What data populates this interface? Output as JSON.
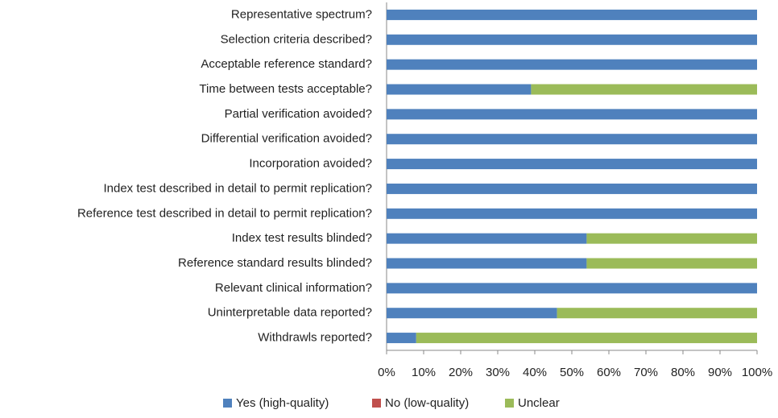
{
  "chart_data": {
    "type": "bar",
    "orientation": "horizontal",
    "stacked": true,
    "categories": [
      "Representative spectrum?",
      "Selection criteria described?",
      "Acceptable reference standard?",
      "Time between tests acceptable?",
      "Partial verification avoided?",
      "Differential verification avoided?",
      "Incorporation avoided?",
      "Index test described in detail to permit replication?",
      "Reference test described in detail to permit replication?",
      "Index test results blinded?",
      "Reference standard results blinded?",
      "Relevant clinical information?",
      "Uninterpretable data reported?",
      "Withdrawls reported?"
    ],
    "series": [
      {
        "name": "Yes (high-quality)",
        "color": "#4f81bd",
        "values": [
          100,
          100,
          100,
          39,
          100,
          100,
          100,
          100,
          100,
          54,
          54,
          100,
          46,
          8
        ]
      },
      {
        "name": "No (low-quality)",
        "color": "#c0504d",
        "values": [
          0,
          0,
          0,
          0,
          0,
          0,
          0,
          0,
          0,
          0,
          0,
          0,
          0,
          0
        ]
      },
      {
        "name": "Unclear",
        "color": "#9bbb59",
        "values": [
          0,
          0,
          0,
          61,
          0,
          0,
          0,
          0,
          0,
          46,
          46,
          0,
          54,
          92
        ]
      }
    ],
    "xlim": [
      0,
      100
    ],
    "xticks": [
      {
        "value": 0,
        "label": "0%"
      },
      {
        "value": 10,
        "label": "10%"
      },
      {
        "value": 20,
        "label": "20%"
      },
      {
        "value": 30,
        "label": "30%"
      },
      {
        "value": 40,
        "label": "40%"
      },
      {
        "value": 50,
        "label": "50%"
      },
      {
        "value": 60,
        "label": "60%"
      },
      {
        "value": 70,
        "label": "70%"
      },
      {
        "value": 80,
        "label": "80%"
      },
      {
        "value": 90,
        "label": "90%"
      },
      {
        "value": 100,
        "label": "100%"
      }
    ],
    "legend": "bottom",
    "grid": false
  }
}
